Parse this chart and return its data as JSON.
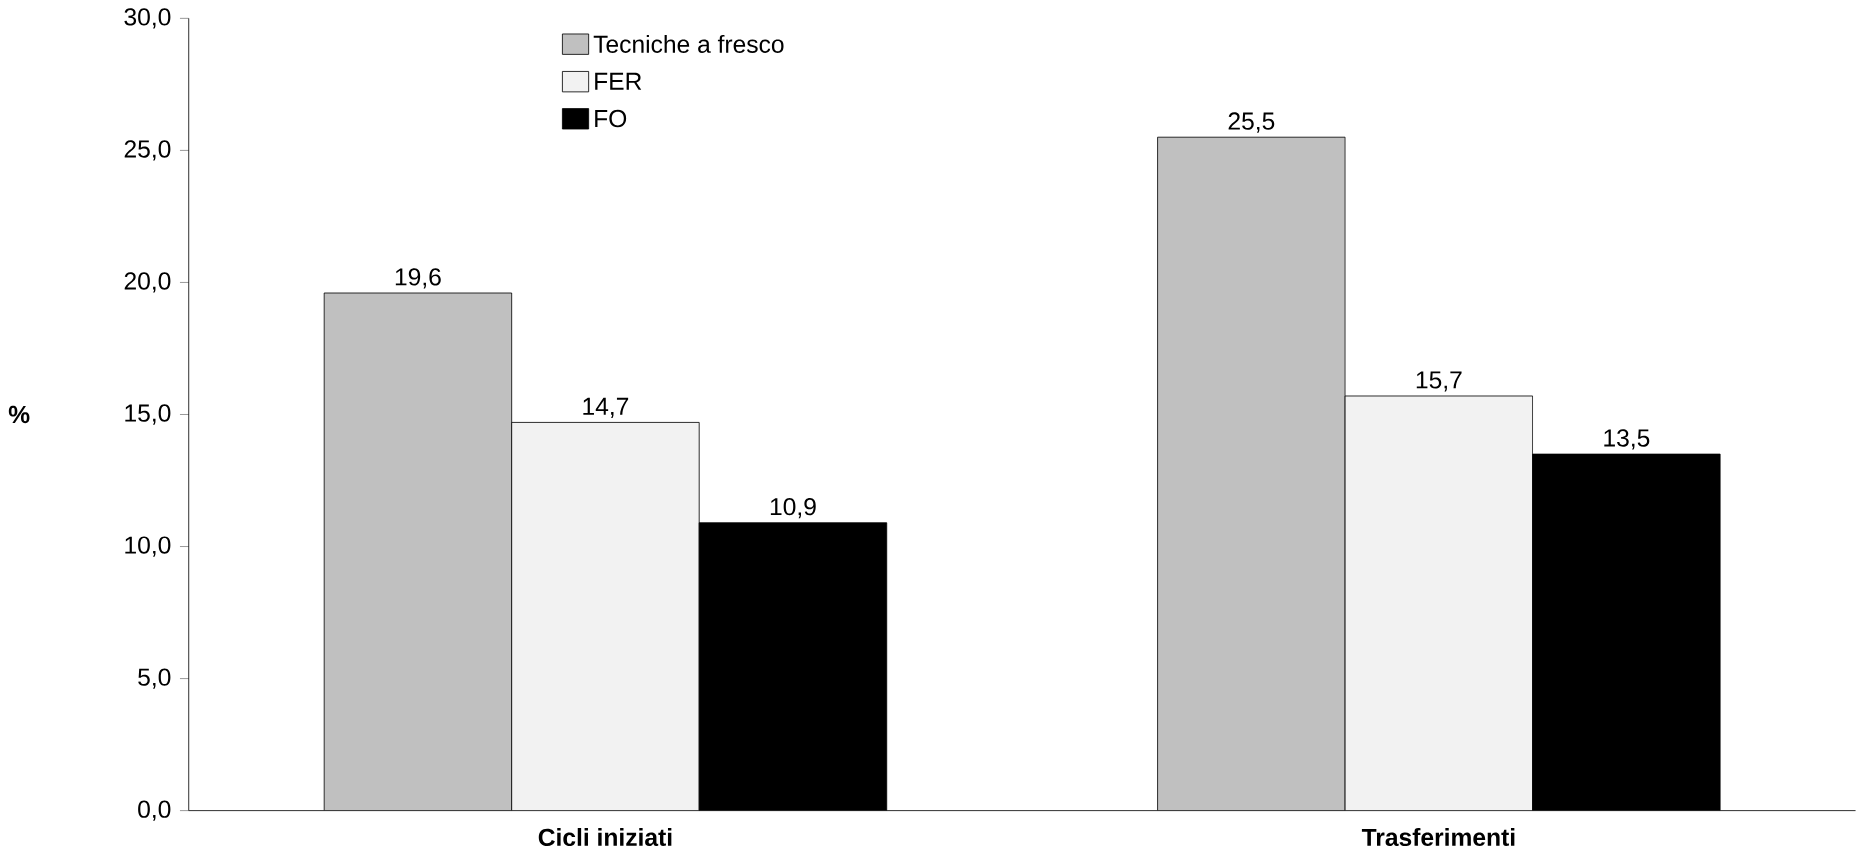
{
  "chart_data": {
    "type": "bar",
    "ylabel": "%",
    "categories": [
      "Cicli iniziati",
      "Trasferimenti"
    ],
    "series": [
      {
        "name": "Tecniche a fresco",
        "color": "#c0c0c0",
        "values": [
          19.6,
          25.5
        ],
        "value_labels": [
          "19,6",
          "25,5"
        ]
      },
      {
        "name": "FER",
        "color": "#f2f2f2",
        "values": [
          14.7,
          15.7
        ],
        "value_labels": [
          "14,7",
          "15,7"
        ]
      },
      {
        "name": "FO",
        "color": "#000000",
        "values": [
          10.9,
          13.5
        ],
        "value_labels": [
          "10,9",
          "13,5"
        ]
      }
    ],
    "ylim": [
      0,
      30
    ],
    "yticks": [
      {
        "value": 0,
        "label": "0,0"
      },
      {
        "value": 5,
        "label": "5,0"
      },
      {
        "value": 10,
        "label": "10,0"
      },
      {
        "value": 15,
        "label": "15,0"
      },
      {
        "value": 20,
        "label": "20,0"
      },
      {
        "value": 25,
        "label": "25,0"
      },
      {
        "value": 30,
        "label": "30,0"
      }
    ],
    "grid": false,
    "legend": "top"
  }
}
